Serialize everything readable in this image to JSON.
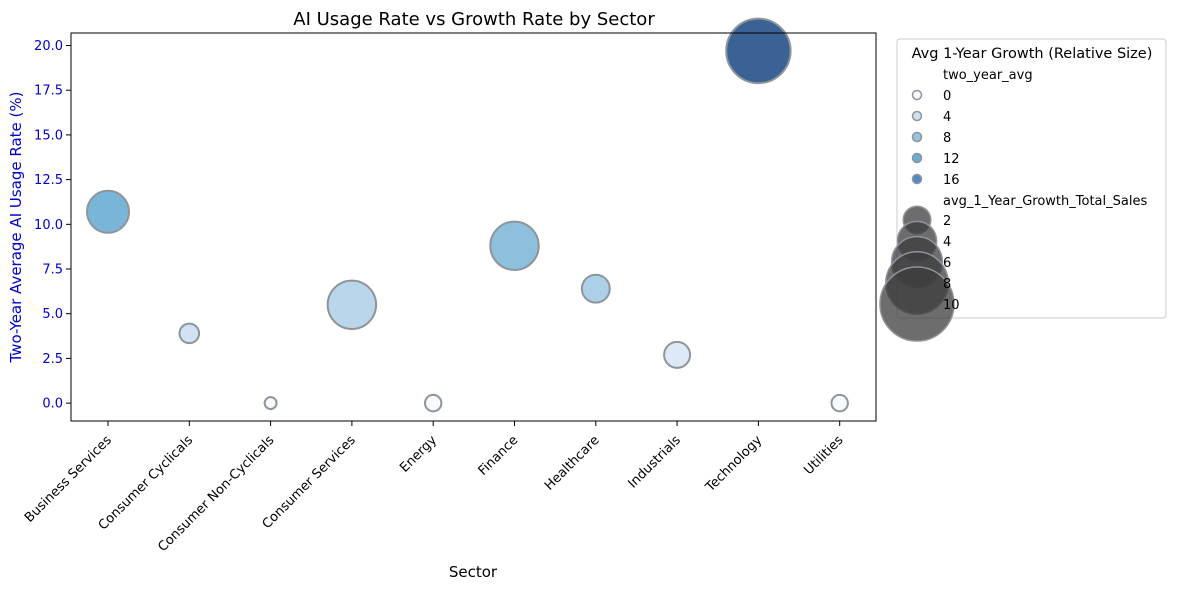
{
  "chart_data": {
    "type": "scatter",
    "title": "AI Usage Rate vs Growth Rate by Sector",
    "xlabel": "Sector",
    "ylabel": "Two-Year Average AI Usage Rate (%)",
    "ylim": [
      -1.0,
      20.7
    ],
    "yticks": [
      0.0,
      2.5,
      5.0,
      7.5,
      10.0,
      12.5,
      15.0,
      17.5,
      20.0
    ],
    "ytick_labels": [
      "0.0",
      "2.5",
      "5.0",
      "7.5",
      "10.0",
      "12.5",
      "15.0",
      "17.5",
      "20.0"
    ],
    "ylabel_color": "#0000cc",
    "categories": [
      "Business Services",
      "Consumer Cyclicals",
      "Consumer Non-Cyclicals",
      "Consumer Services",
      "Energy",
      "Finance",
      "Healthcare",
      "Industrials",
      "Technology",
      "Utilities"
    ],
    "series": [
      {
        "y": [
          10.7,
          3.9,
          0.0,
          5.5,
          0.0,
          8.8,
          6.4,
          2.7,
          19.7,
          0.0
        ],
        "hue_two_year_avg": [
          10.7,
          3.9,
          0.0,
          5.5,
          0.0,
          8.8,
          6.4,
          2.7,
          19.7,
          0.0
        ],
        "size_avg_1_year_growth": [
          5.0,
          1.5,
          0.3,
          6.0,
          1.0,
          6.0,
          2.8,
          2.5,
          8.5,
          1.0
        ]
      }
    ],
    "grid": false,
    "legend": {
      "placement": "outside-right",
      "title": "Avg 1-Year Growth (Relative Size)",
      "hue_title": "two_year_avg",
      "hue_entries": [
        {
          "label": "0",
          "value": 0
        },
        {
          "label": "4",
          "value": 4
        },
        {
          "label": "8",
          "value": 8
        },
        {
          "label": "12",
          "value": 12
        },
        {
          "label": "16",
          "value": 16
        }
      ],
      "size_title": "avg_1_Year_Growth_Total_Sales",
      "size_entries": [
        {
          "label": "2",
          "value": 2
        },
        {
          "label": "4",
          "value": 4
        },
        {
          "label": "6",
          "value": 6
        },
        {
          "label": "8",
          "value": 8
        },
        {
          "label": "10",
          "value": 10
        }
      ]
    },
    "colormap": [
      "#f7fbff",
      "#d0e1f2",
      "#94c4df",
      "#6aaed6",
      "#4b8ac3",
      "#3a5f91"
    ],
    "hue_range": [
      0,
      20
    ]
  }
}
